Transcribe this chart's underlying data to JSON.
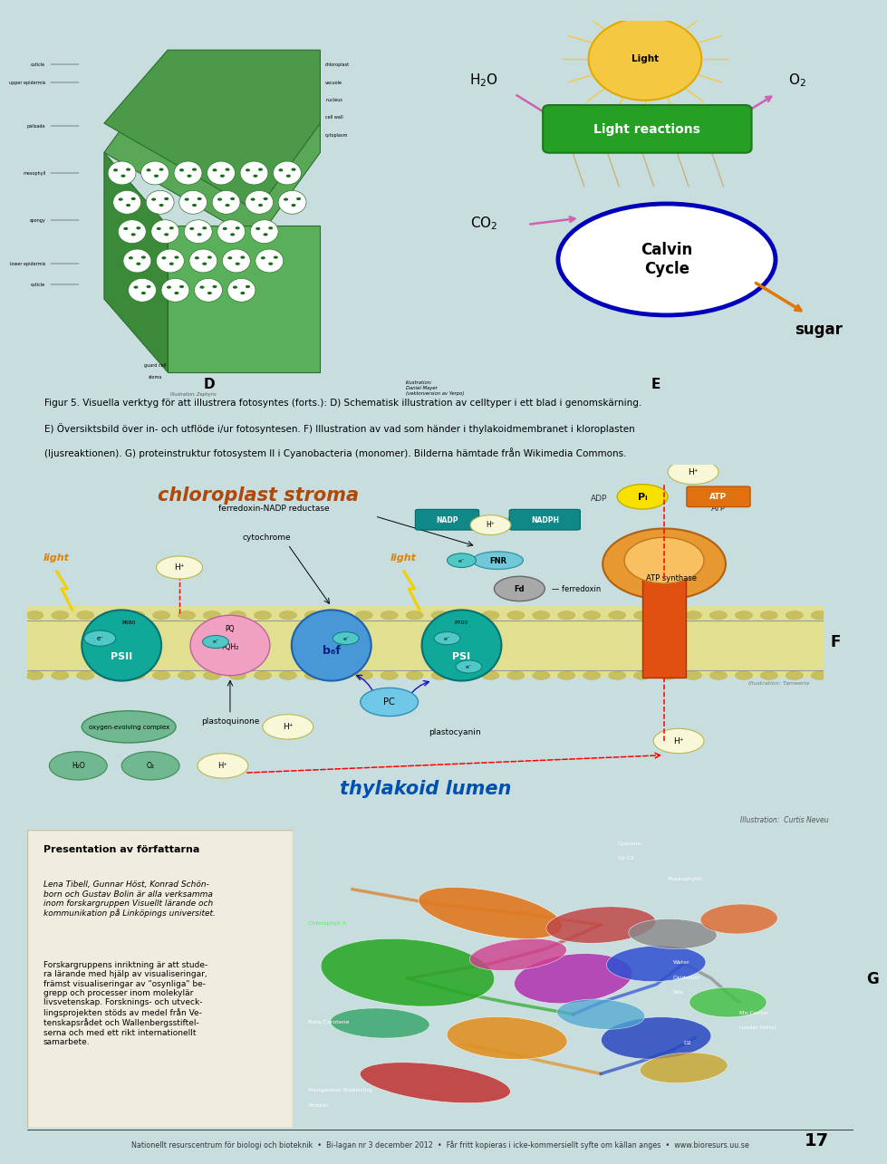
{
  "page_bg": "#c8dede",
  "page_width": 9.6,
  "page_height": 13.25,
  "caption_text_line1": "Figur 5. Visuella verktyg för att illustrera fotosyntes (forts.): D) Schematisk illustration av celltyper i ett blad i genomskärning.",
  "caption_text_line2": "E) Översiktsbild över in- och utflöde i/ur fotosyntesen. F) Illustration av vad som händer i thylakoidmembranet i kloroplasten",
  "caption_text_line3": "(ljusreaktionen). G) proteinstruktur fotosystem II i Cyanobacteria (monomer). Bilderna hämtade från Wikimedia Commons.",
  "footer_text": "Nationellt resurscentrum för biologi och bioteknik  •  Bi-lagan nr 3 december 2012  •  Får fritt kopieras i icke-kommersiellt syfte om källan anges  •  www.bioresurs.uu.se",
  "page_number": "17",
  "chloroplast_stroma_text": "chloroplast stroma",
  "thylakoid_lumen_text": "thylakoid lumen",
  "atp_synthase_text": "ATP synthase",
  "ferredoxin_nadp_text": "ferredoxin-NADP reductase",
  "cytochrome_text": "cytochrome",
  "plastoquinone_text": "plastoquinone",
  "plastocyanin_text": "plastocyanin",
  "oxygen_evolving_text": "oxygen-evolving complex",
  "ferredoxin_text": "ferredoxin",
  "light_reactions_text": "Light reactions",
  "calvin_cycle_text": "Calvin\nCycle",
  "sugar_text": "sugar",
  "light_text": "Light",
  "presentation_title": "Presentation av författarna",
  "presentation_body1": "Lena Tibell, Gunnar Höst, Konrad Schön-\nborn och Gustav Bolin är alla verksamma\ninom forskargruppen Visuellt lärande och\nkommunikation på Linköpings universitet.",
  "presentation_body2": "Forskargruppens inriktning är att stude-\nra lärande med hjälp av visualiseringar,\nfrämst visualiseringar av \"osynliga\" be-\ngrepp och processer inom molekylär\nlivsvetenskap. Forsknings- och utveck-\nlingsprojekten stöds av medel från Ve-\ntenskapsrådet och Wallenbergsstiftel-\nserna och med ett rikt internationellt\nsamarbete.",
  "illustration_tameeria": "Illustration: Tameeria",
  "illustration_curtis": "Illustration:  Curtis Neveu",
  "illustration_daniel": "Illustration:\nDaniel Mayer\n(vektorversion av Yerpo)"
}
